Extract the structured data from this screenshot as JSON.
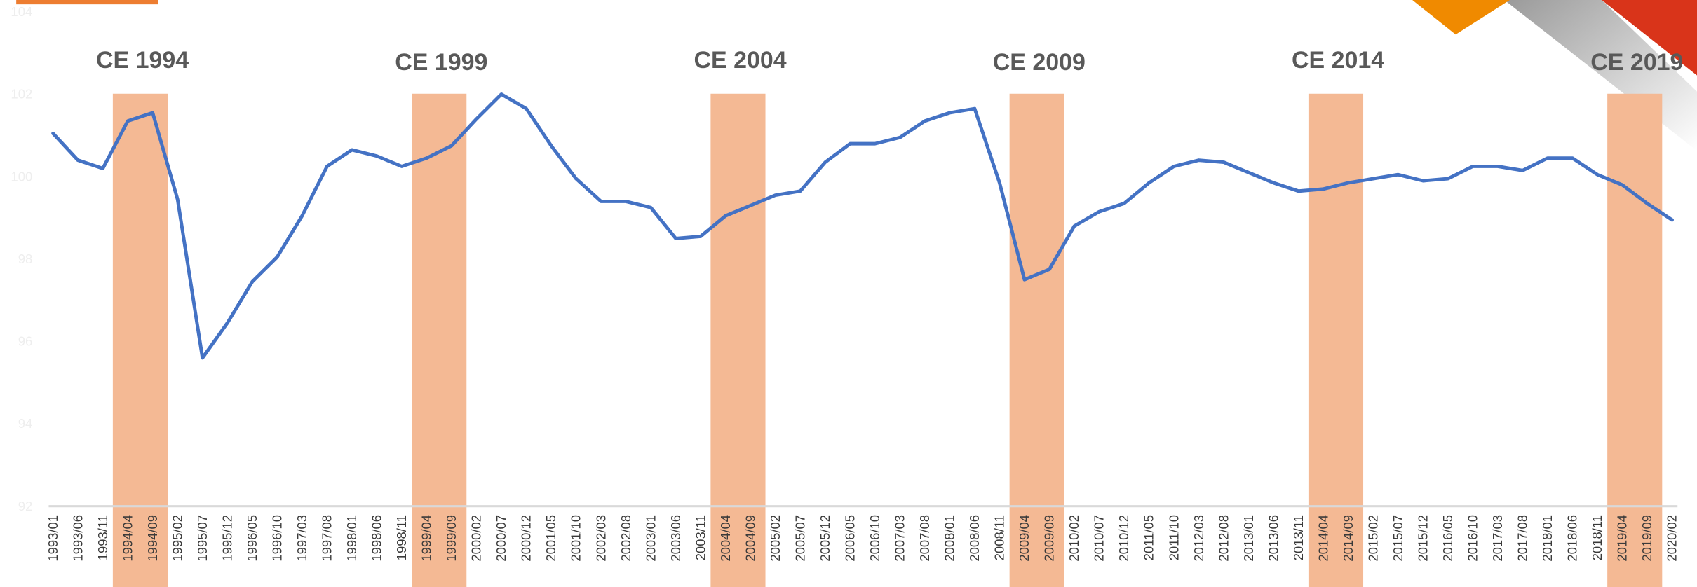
{
  "chart_data": {
    "type": "line",
    "categories": [
      "1993/01",
      "1993/06",
      "1993/11",
      "1994/04",
      "1994/09",
      "1995/02",
      "1995/07",
      "1995/12",
      "1996/05",
      "1996/10",
      "1997/03",
      "1997/08",
      "1998/01",
      "1998/06",
      "1998/11",
      "1999/04",
      "1999/09",
      "2000/02",
      "2000/07",
      "2000/12",
      "2001/05",
      "2001/10",
      "2002/03",
      "2002/08",
      "2003/01",
      "2003/06",
      "2003/11",
      "2004/04",
      "2004/09",
      "2005/02",
      "2005/07",
      "2005/12",
      "2006/05",
      "2006/10",
      "2007/03",
      "2007/08",
      "2008/01",
      "2008/06",
      "2008/11",
      "2009/04",
      "2009/09",
      "2010/02",
      "2010/07",
      "2010/12",
      "2011/05",
      "2011/10",
      "2012/03",
      "2012/08",
      "2013/01",
      "2013/06",
      "2013/11",
      "2014/04",
      "2014/09",
      "2015/02",
      "2015/07",
      "2015/12",
      "2016/05",
      "2016/10",
      "2017/03",
      "2017/08",
      "2018/01",
      "2018/06",
      "2018/11",
      "2019/04",
      "2019/09",
      "2020/02"
    ],
    "series": [
      {
        "color": "#4472c4",
        "values": [
          101.05,
          100.4,
          100.2,
          101.35,
          101.55,
          99.45,
          95.6,
          96.45,
          97.45,
          98.05,
          99.05,
          100.25,
          100.65,
          100.5,
          100.25,
          100.45,
          100.75,
          101.4,
          102.0,
          101.65,
          100.75,
          99.95,
          99.4,
          99.4,
          99.25,
          98.5,
          98.55,
          99.05,
          99.3,
          99.55,
          99.65,
          100.35,
          100.8,
          100.8,
          100.95,
          101.35,
          101.55,
          101.65,
          99.85,
          97.5,
          97.75,
          98.8,
          99.15,
          99.35,
          99.85,
          100.25,
          100.4,
          100.35,
          100.1,
          99.85,
          99.65,
          99.7,
          99.85,
          99.95,
          100.05,
          99.9,
          99.95,
          100.25,
          100.25,
          100.15,
          100.45,
          100.45,
          100.05,
          99.8,
          99.35,
          98.95
        ]
      }
    ],
    "bands": [
      {
        "label": "CE 1994",
        "span": [
          3,
          4
        ]
      },
      {
        "label": "CE 1999",
        "span": [
          15,
          16
        ]
      },
      {
        "label": "CE 2004",
        "span": [
          27,
          28
        ]
      },
      {
        "label": "CE 2009",
        "span": [
          39,
          40
        ]
      },
      {
        "label": "CE 2014",
        "span": [
          51,
          52
        ]
      },
      {
        "label": "CE 2019",
        "span": [
          63,
          64
        ]
      }
    ],
    "band_color": "#f4b994",
    "ylim": [
      92,
      104
    ],
    "yticks": [
      92,
      94,
      96,
      98,
      100,
      102,
      104
    ],
    "grid": false
  }
}
